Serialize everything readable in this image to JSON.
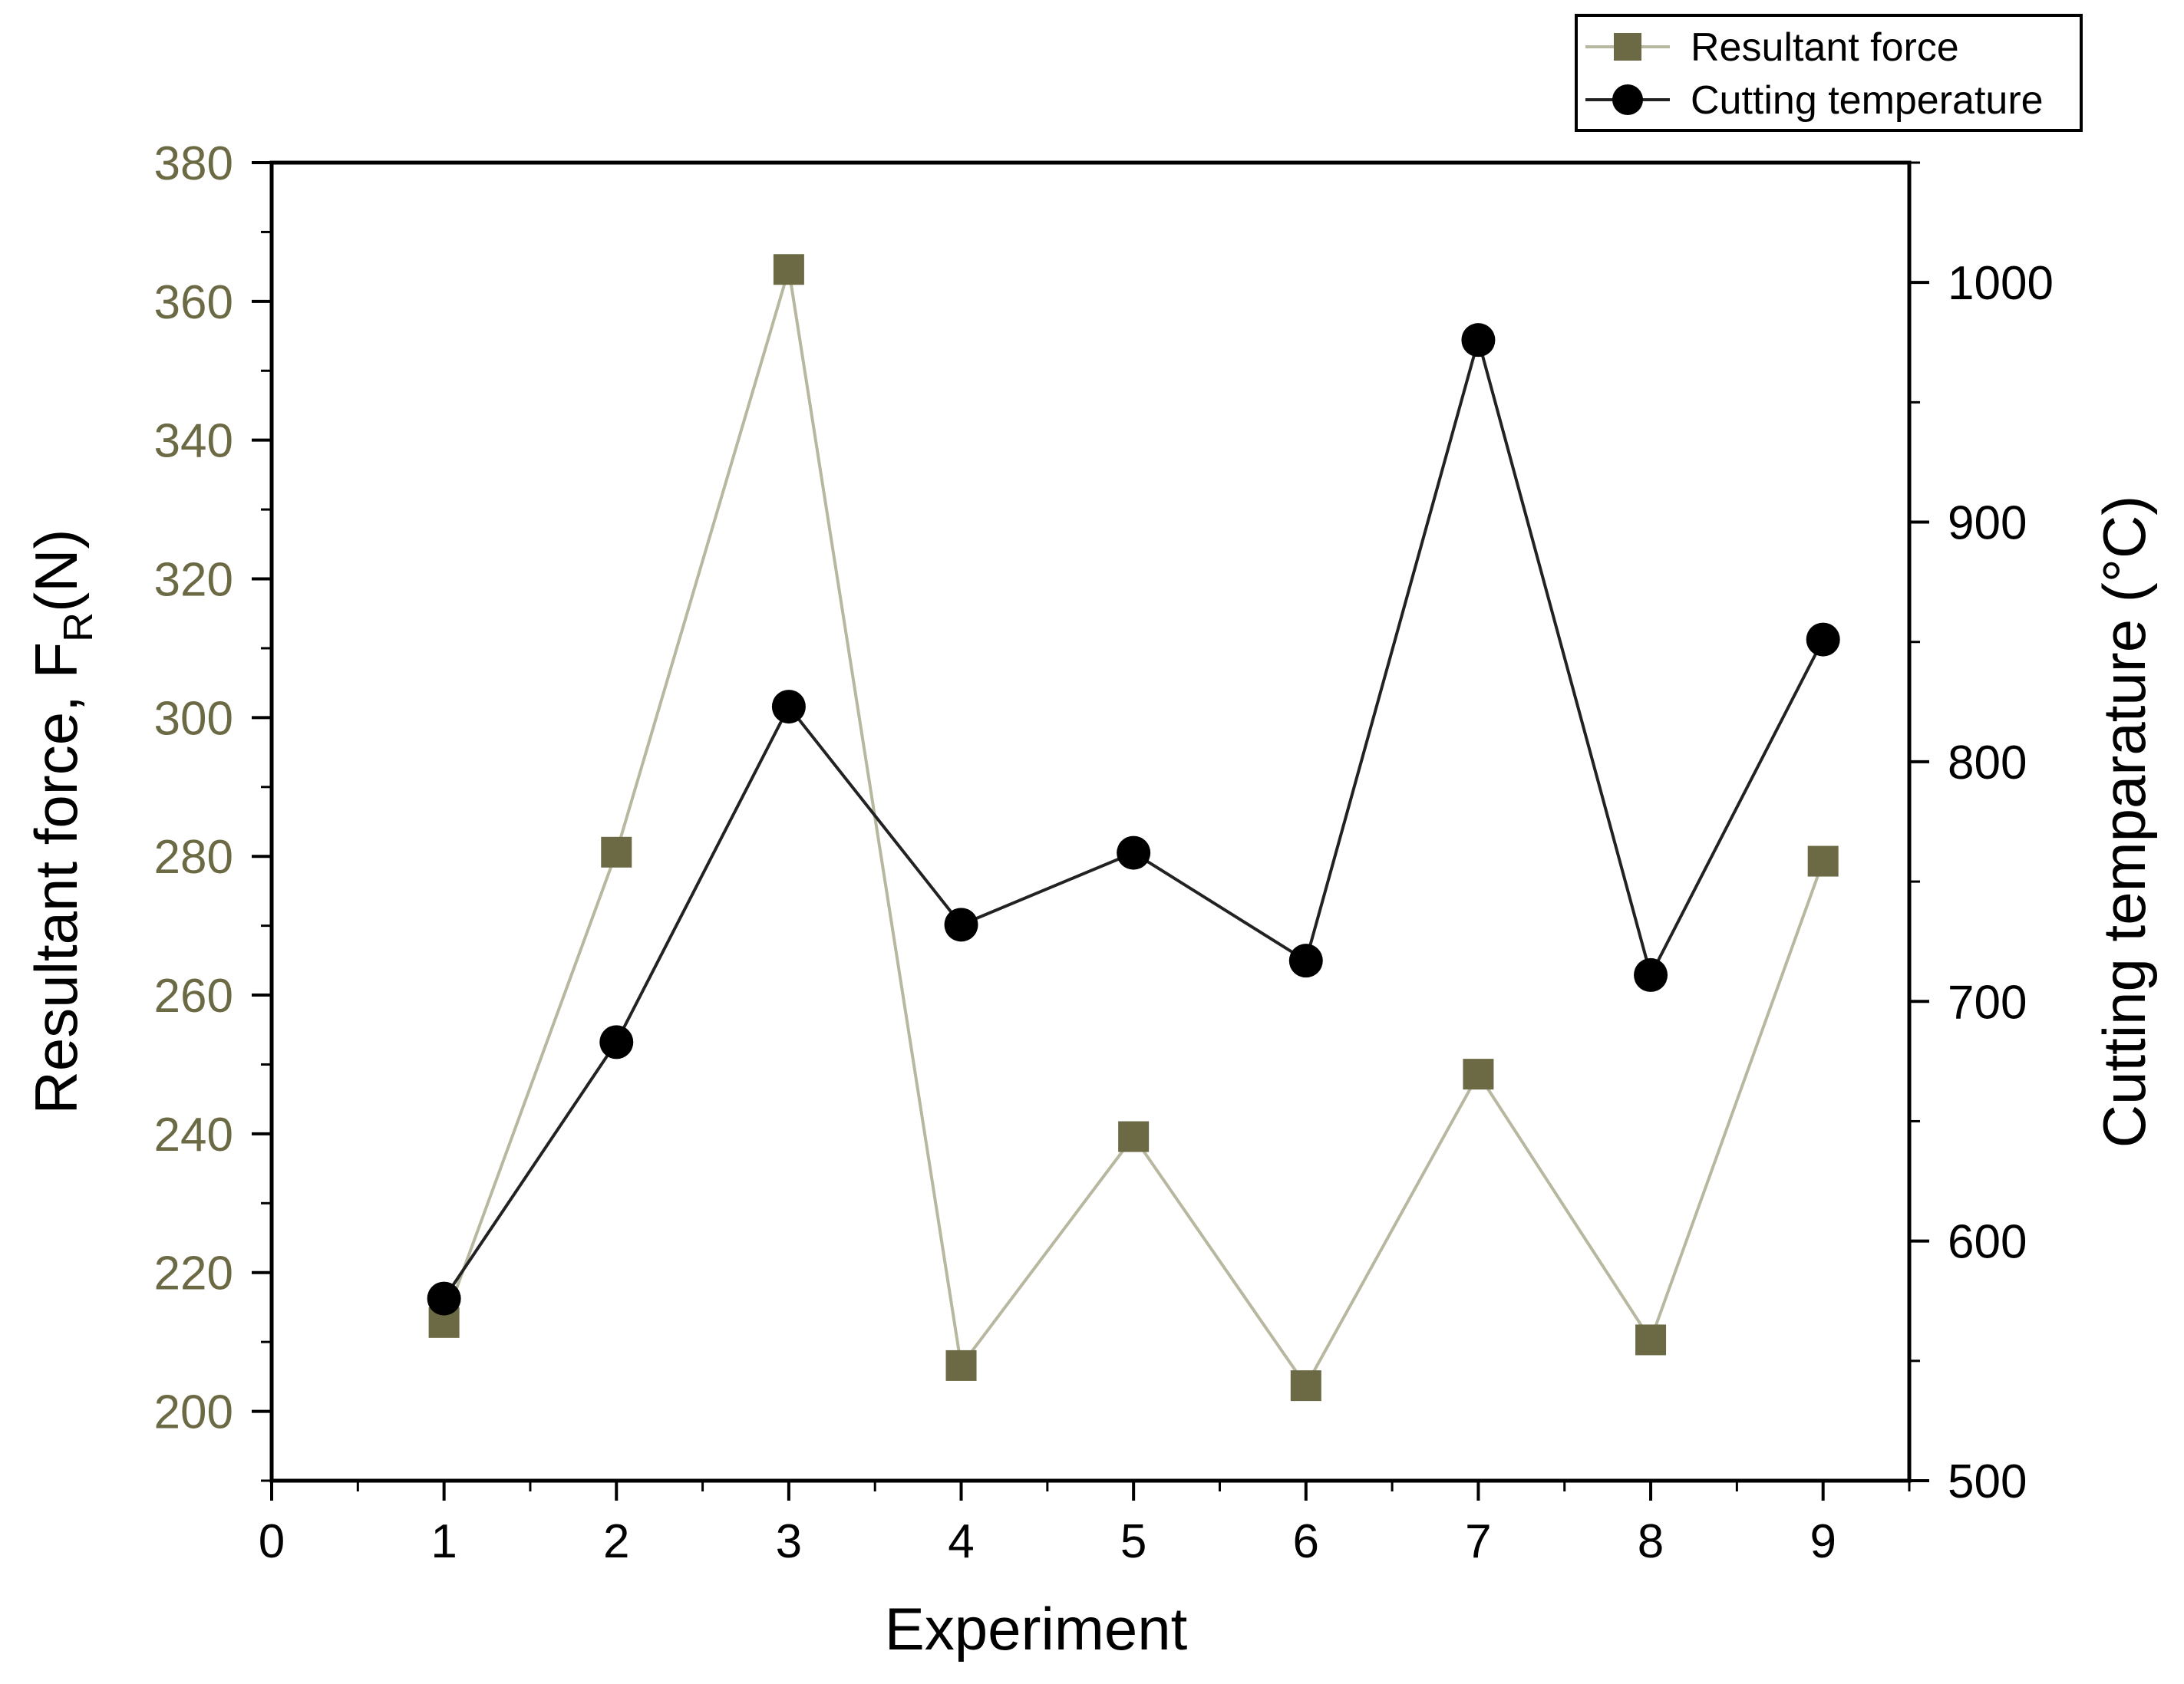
{
  "chart_data": {
    "type": "line",
    "xlabel": "Experiment",
    "ylabel_left": "Resultant force, F",
    "ylabel_left_sub": "R",
    "ylabel_left_unit": "(N)",
    "ylabel_right": "Cutting temparature (°C)",
    "xlim": [
      0,
      9.5
    ],
    "ylim_left": [
      190,
      380
    ],
    "ylim_right": [
      500,
      1050
    ],
    "x_ticks": [
      0,
      1,
      2,
      3,
      4,
      5,
      6,
      7,
      8,
      9
    ],
    "y_left_ticks": [
      200,
      220,
      240,
      260,
      280,
      300,
      320,
      340,
      360,
      380
    ],
    "y_right_ticks": [
      500,
      600,
      700,
      800,
      900,
      1000
    ],
    "grid": false,
    "legend_position": "top-right",
    "series": [
      {
        "name": "Resultant force",
        "axis": "left",
        "marker": "square",
        "color": "#6b6a45",
        "line_color": "#b8b8a0",
        "x": [
          1,
          2,
          3,
          4,
          5,
          6,
          7,
          8,
          9
        ],
        "values": [
          212.8,
          280.6,
          364.6,
          206.6,
          239.6,
          203.7,
          248.6,
          210.3,
          279.3
        ]
      },
      {
        "name": "Cutting temperature",
        "axis": "right",
        "marker": "circle",
        "color": "#000000",
        "line_color": "#222222",
        "x": [
          1,
          2,
          3,
          4,
          5,
          6,
          7,
          8,
          9
        ],
        "values": [
          576,
          683,
          823,
          732,
          762,
          717,
          976,
          711,
          851
        ]
      }
    ]
  },
  "colors": {
    "left_axis_text": "#6b6a45",
    "right_axis_text": "#000000",
    "axes": "#000000"
  }
}
